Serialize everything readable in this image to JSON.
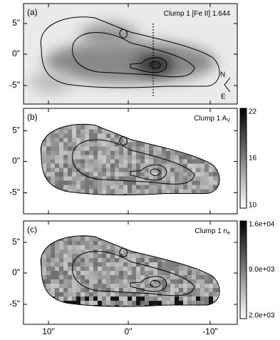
{
  "panels": [
    {
      "label": "(a)",
      "title": {
        "text": "Clump 1 [Fe II] 1.644"
      },
      "yticks": [
        "5\"",
        "0\"",
        "-5\""
      ],
      "compass": [
        "N",
        "E"
      ]
    },
    {
      "label": "(b)",
      "title": {
        "text": "Clump 1 A",
        "subscript": "V"
      },
      "yticks": [
        "5\"",
        "0\"",
        "-5\""
      ],
      "colorbar": [
        "22",
        "16",
        "10"
      ]
    },
    {
      "label": "(c)",
      "title": {
        "text": "Clump 1 n",
        "subscript": "e"
      },
      "yticks": [
        "5\"",
        "0\"",
        "-5\""
      ],
      "colorbar": [
        "1.6e+04",
        "9.0e+03",
        "2.0e+03"
      ]
    }
  ],
  "xticks": [
    "10\"",
    "0\"",
    "-10\""
  ]
}
